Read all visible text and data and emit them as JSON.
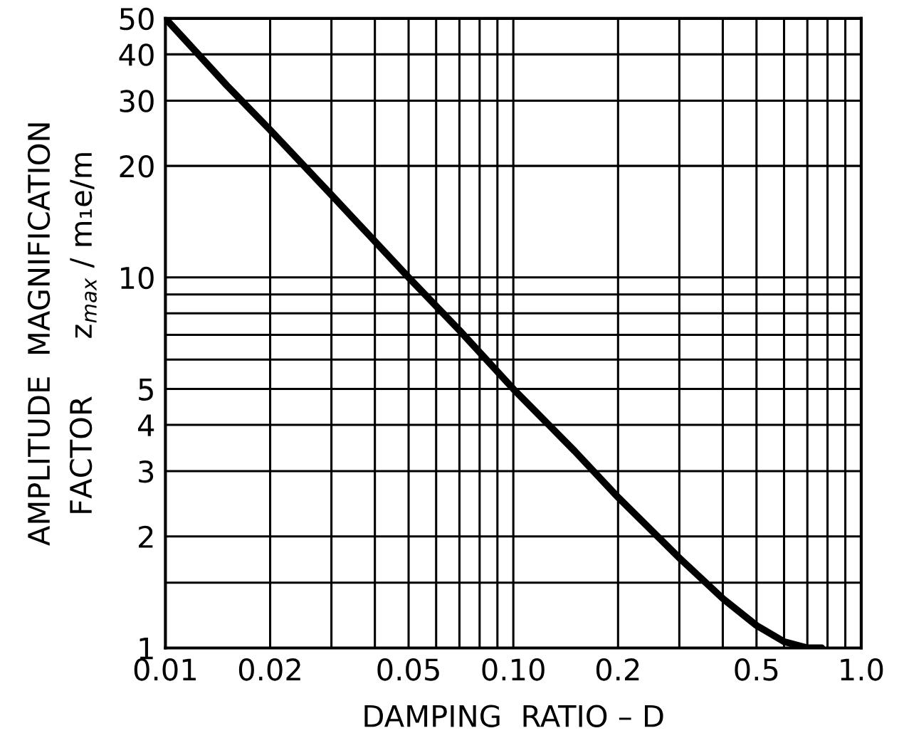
{
  "chart_data": {
    "type": "line",
    "xlabel": "DAMPING  RATIO – D",
    "ylabel": "AMPLITUDE  MAGNIFICATION\nFACTOR      z$_{max}$ / m₁e/m",
    "log": "xy",
    "grid": true,
    "marker": "none",
    "line_style": "solid",
    "xlim": [
      0.01,
      1.0
    ],
    "ylim": [
      1,
      50
    ],
    "xticks": [
      {
        "value": 0.01,
        "label": "0.01"
      },
      {
        "value": 0.02,
        "label": "0.02"
      },
      {
        "value": 0.03,
        "label": null
      },
      {
        "value": 0.04,
        "label": null
      },
      {
        "value": 0.05,
        "label": "0.05"
      },
      {
        "value": 0.06,
        "label": null
      },
      {
        "value": 0.07,
        "label": null
      },
      {
        "value": 0.08,
        "label": null
      },
      {
        "value": 0.09,
        "label": null
      },
      {
        "value": 0.1,
        "label": "0.10"
      },
      {
        "value": 0.2,
        "label": "0.2"
      },
      {
        "value": 0.3,
        "label": null
      },
      {
        "value": 0.4,
        "label": null
      },
      {
        "value": 0.5,
        "label": "0.5"
      },
      {
        "value": 0.6,
        "label": null
      },
      {
        "value": 0.7,
        "label": null
      },
      {
        "value": 0.8,
        "label": null
      },
      {
        "value": 0.9,
        "label": null
      },
      {
        "value": 1.0,
        "label": "1.0"
      }
    ],
    "yticks": [
      1,
      {
        "value": 1.5,
        "label": null
      },
      2,
      3,
      4,
      5,
      {
        "value": 6,
        "label": null
      },
      {
        "value": 7,
        "label": null
      },
      {
        "value": 8,
        "label": null
      },
      {
        "value": 9,
        "label": null
      },
      10,
      20,
      30,
      40,
      50
    ],
    "series": [
      {
        "color": "#000000",
        "x": [
          0.01,
          0.015,
          0.02,
          0.03,
          0.05,
          0.07,
          0.1,
          0.15,
          0.2,
          0.3,
          0.4,
          0.5,
          0.6,
          0.7,
          0.77
        ],
        "values": [
          50,
          33,
          25,
          16.7,
          10,
          7.2,
          5.0,
          3.4,
          2.55,
          1.75,
          1.36,
          1.15,
          1.04,
          1.0,
          1.0
        ]
      }
    ]
  }
}
